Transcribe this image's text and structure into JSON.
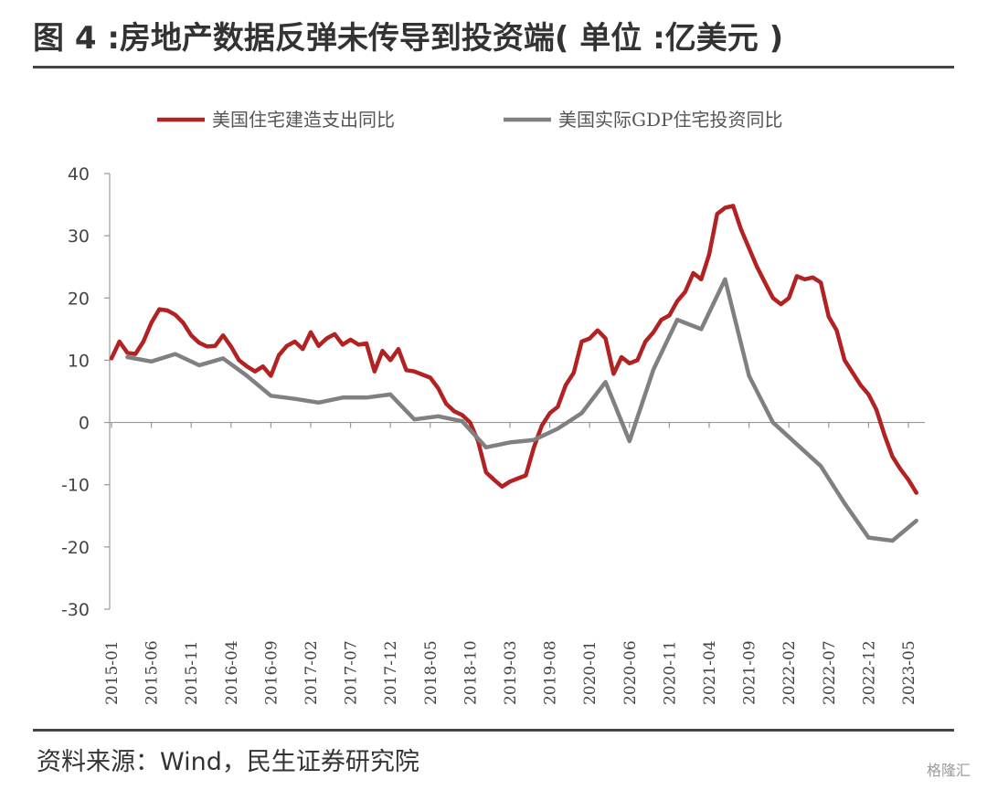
{
  "header": {
    "title": "图 4 :房地产数据反弹未传导到投资端( 单位 :亿美元 )"
  },
  "footer": {
    "source": "资料来源：Wind，民生证券研究院",
    "watermark": "格隆汇"
  },
  "colors": {
    "series1": "#b22222",
    "series2": "#808080",
    "axis": "#999999"
  },
  "chart_data": {
    "type": "line",
    "title": "",
    "xlabel": "",
    "ylabel": "",
    "ylim": [
      -30,
      40
    ],
    "yticks": [
      40,
      30,
      20,
      10,
      0,
      -10,
      -20,
      -30
    ],
    "x_tick_labels": [
      "2015-01",
      "2015-06",
      "2015-11",
      "2016-04",
      "2016-09",
      "2017-02",
      "2017-07",
      "2017-12",
      "2018-05",
      "2018-10",
      "2019-03",
      "2019-08",
      "2020-01",
      "2020-06",
      "2020-11",
      "2021-04",
      "2021-09",
      "2022-02",
      "2022-07",
      "2022-12",
      "2023-05"
    ],
    "x_start": "2015-01",
    "legend_position": "top",
    "grid": false,
    "series": [
      {
        "name": "美国住宅建造支出同比",
        "color": "#b22222",
        "frequency": "monthly",
        "start": "2015-01",
        "values": [
          10.3,
          13.0,
          11.2,
          11.0,
          13.0,
          16.0,
          18.2,
          18.0,
          17.3,
          16.0,
          14.0,
          12.8,
          12.2,
          12.3,
          14.0,
          12.2,
          10.0,
          9.0,
          8.2,
          9.0,
          7.5,
          10.8,
          12.3,
          13.0,
          11.8,
          14.5,
          12.3,
          13.5,
          14.2,
          12.5,
          13.3,
          12.5,
          12.7,
          8.2,
          11.5,
          10.0,
          11.8,
          8.4,
          8.2,
          7.7,
          7.2,
          5.5,
          3.0,
          1.8,
          1.2,
          0.0,
          -3.0,
          -8.0,
          -9.2,
          -10.3,
          -9.5,
          -9.0,
          -8.5,
          -4.0,
          -0.5,
          1.5,
          2.5,
          6.0,
          8.0,
          13.0,
          13.5,
          14.8,
          13.5,
          7.8,
          10.5,
          9.5,
          10.0,
          13.0,
          14.5,
          16.5,
          17.2,
          19.5,
          21.0,
          24.0,
          23.0,
          27.0,
          33.5,
          34.5,
          34.8,
          31.0,
          28.0,
          25.0,
          22.5,
          20.0,
          19.0,
          20.0,
          23.5,
          23.0,
          23.3,
          22.5,
          17.0,
          14.8,
          10.0,
          8.0,
          6.0,
          4.5,
          2.0,
          -2.0,
          -5.5,
          -7.5,
          -9.2,
          -11.3
        ]
      },
      {
        "name": "美国实际GDP住宅投资同比",
        "color": "#808080",
        "frequency": "quarterly",
        "points": [
          [
            "2015-03",
            10.5
          ],
          [
            "2015-06",
            9.8
          ],
          [
            "2015-09",
            11.0
          ],
          [
            "2015-12",
            9.2
          ],
          [
            "2016-03",
            10.3
          ],
          [
            "2016-06",
            7.5
          ],
          [
            "2016-09",
            4.3
          ],
          [
            "2016-12",
            3.8
          ],
          [
            "2017-03",
            3.2
          ],
          [
            "2017-06",
            4.0
          ],
          [
            "2017-09",
            4.0
          ],
          [
            "2017-12",
            4.5
          ],
          [
            "2018-03",
            0.5
          ],
          [
            "2018-06",
            1.0
          ],
          [
            "2018-09",
            0.2
          ],
          [
            "2018-12",
            -4.0
          ],
          [
            "2019-03",
            -3.2
          ],
          [
            "2019-06",
            -2.8
          ],
          [
            "2019-09",
            -1.0
          ],
          [
            "2019-12",
            1.5
          ],
          [
            "2020-03",
            6.5
          ],
          [
            "2020-06",
            -3.0
          ],
          [
            "2020-09",
            8.5
          ],
          [
            "2020-12",
            16.5
          ],
          [
            "2021-03",
            15.0
          ],
          [
            "2021-06",
            23.0
          ],
          [
            "2021-09",
            7.5
          ],
          [
            "2021-12",
            0.0
          ],
          [
            "2022-03",
            -3.5
          ],
          [
            "2022-06",
            -7.0
          ],
          [
            "2022-09",
            -13.0
          ],
          [
            "2022-12",
            -18.5
          ],
          [
            "2023-03",
            -19.0
          ],
          [
            "2023-06",
            -15.8
          ]
        ]
      }
    ]
  }
}
